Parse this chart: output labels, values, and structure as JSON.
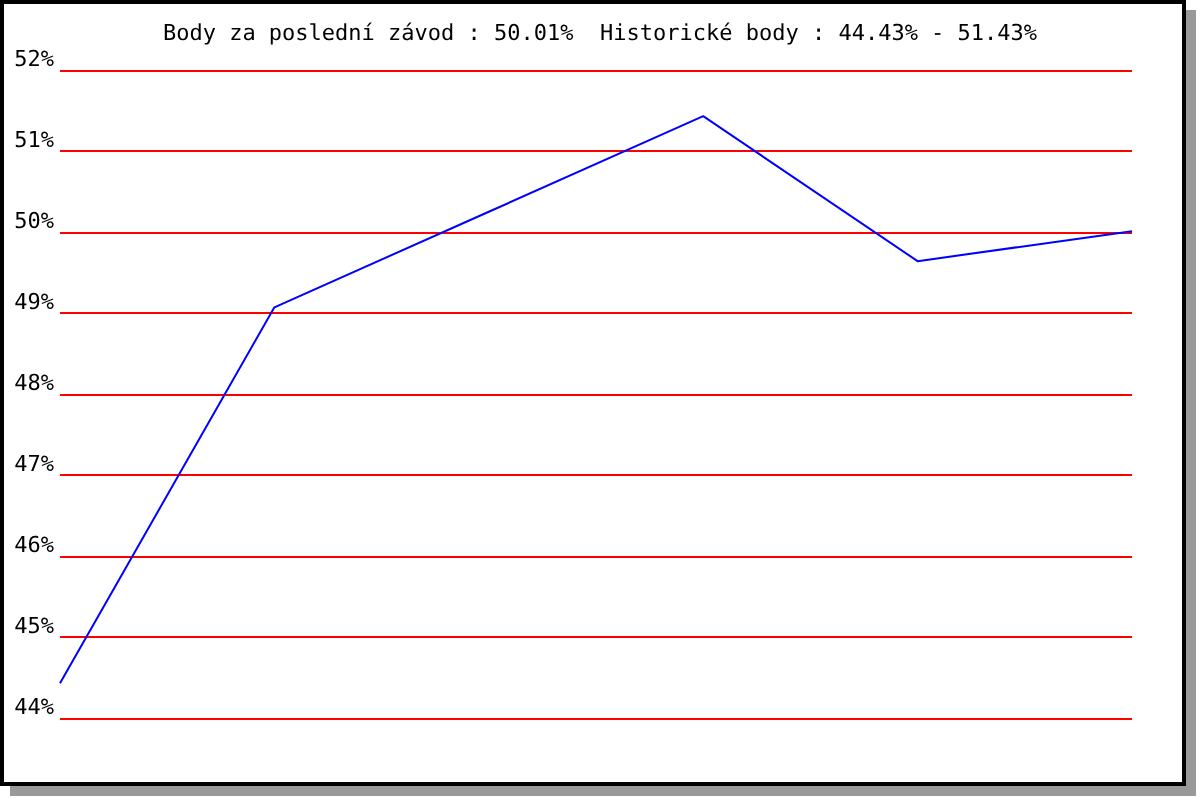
{
  "chart_data": {
    "type": "line",
    "title": "Body za poslední závod : 50.01%  Historické body : 44.43% - 51.43%",
    "categories": [
      null,
      null,
      null,
      null,
      null,
      null
    ],
    "series": [
      {
        "color": "#0000ff",
        "values": [
          44.43,
          49.07,
          50.25,
          51.43,
          49.64,
          50.01
        ]
      }
    ],
    "ylim": [
      44,
      52
    ],
    "yticks": [
      {
        "value": 44,
        "label": "44%"
      },
      {
        "value": 45,
        "label": "45%"
      },
      {
        "value": 46,
        "label": "46%"
      },
      {
        "value": 47,
        "label": "47%"
      },
      {
        "value": 48,
        "label": "48%"
      },
      {
        "value": 49,
        "label": "49%"
      },
      {
        "value": 50,
        "label": "50%"
      },
      {
        "value": 51,
        "label": "51%"
      },
      {
        "value": 52,
        "label": "52%"
      }
    ],
    "grid": "y",
    "marker": "none",
    "line_style": "solid"
  }
}
